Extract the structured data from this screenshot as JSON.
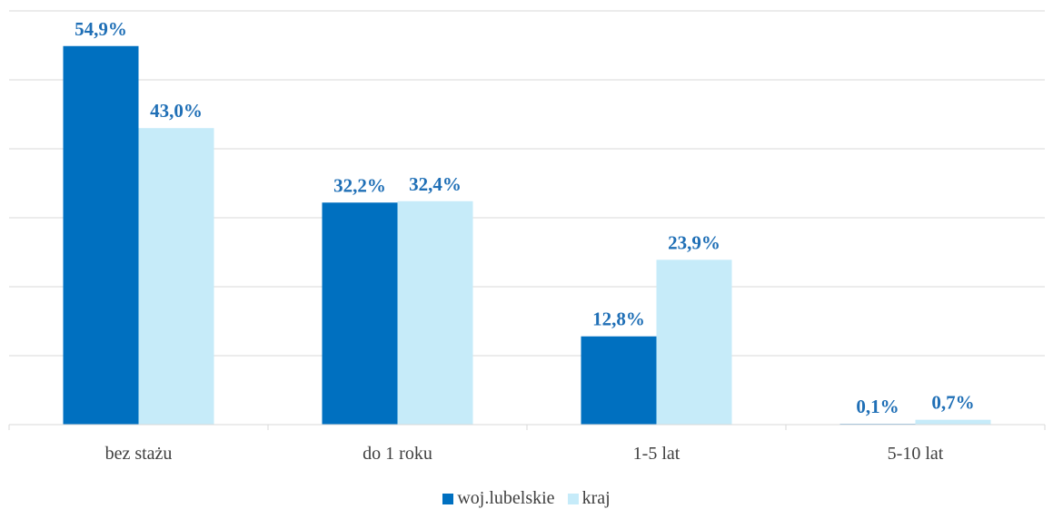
{
  "chart_data": {
    "type": "bar",
    "categories": [
      "bez stażu",
      "do 1 roku",
      "1-5 lat",
      "5-10 lat"
    ],
    "series": [
      {
        "name": "woj.lubelskie",
        "values": [
          54.9,
          32.2,
          12.8,
          0.1
        ],
        "labels": [
          "54,9%",
          "32,2%",
          "12,8%",
          "0,1%"
        ],
        "color": "#0070C0"
      },
      {
        "name": "kraj",
        "values": [
          43.0,
          32.4,
          23.9,
          0.7
        ],
        "labels": [
          "43,0%",
          "32,4%",
          "23,9%",
          "0,7%"
        ],
        "color": "#C6EBF9"
      }
    ],
    "ylim": [
      0,
      60
    ],
    "gridlines": [
      0,
      10,
      20,
      30,
      40,
      50,
      60
    ],
    "grid": true,
    "legend_position": "bottom",
    "label_color": "#1F6FB6",
    "gridline_color": "#D9D9D9",
    "axis_text_color": "#404040"
  }
}
